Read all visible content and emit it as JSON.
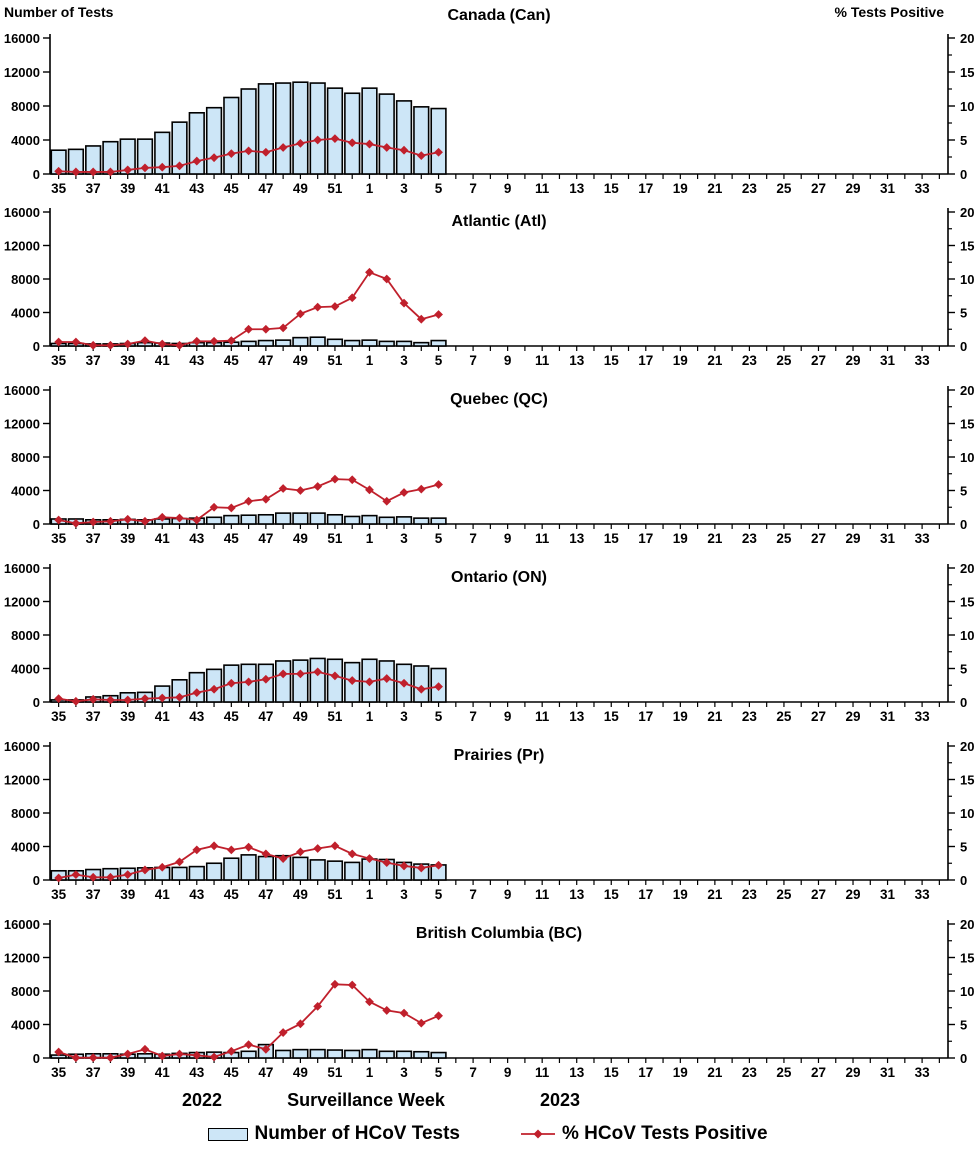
{
  "figure": {
    "left_axis_title": "Number of Tests",
    "right_axis_title": "% Tests Positive",
    "x_axis_title": "Surveillance Week",
    "year_left": "2022",
    "year_right": "2023"
  },
  "legend": {
    "bars_label": "Number of HCoV Tests",
    "line_label": "% HCoV Tests Positive"
  },
  "colors": {
    "bar_fill": "#CDE6F7",
    "bar_stroke": "#000000",
    "line": "#C0202C",
    "text": "#000000"
  },
  "chart_data": {
    "type": "bar+line",
    "description": "Six stacked panels sharing identical axes: bars = weekly number of HCoV tests (left axis), red diamond line = % HCoV tests positive (right axis).",
    "x_weeks": [
      35,
      36,
      37,
      38,
      39,
      40,
      41,
      42,
      43,
      44,
      45,
      46,
      47,
      48,
      49,
      50,
      51,
      52,
      1,
      2,
      3,
      4,
      5,
      6,
      7,
      8,
      9,
      10,
      11,
      12,
      13,
      14,
      15,
      16,
      17,
      18,
      19,
      20,
      21,
      22,
      23,
      24,
      25,
      26,
      27,
      28,
      29,
      30,
      31,
      32,
      33,
      34
    ],
    "x_tick_labels": [
      35,
      37,
      39,
      41,
      43,
      45,
      47,
      49,
      51,
      1,
      3,
      5,
      7,
      9,
      11,
      13,
      15,
      17,
      19,
      21,
      23,
      25,
      27,
      29,
      31,
      33
    ],
    "data_weeks": [
      35,
      36,
      37,
      38,
      39,
      40,
      41,
      42,
      43,
      44,
      45,
      46,
      47,
      48,
      49,
      50,
      51,
      52,
      1,
      2,
      3,
      4,
      5
    ],
    "y_left": {
      "ticks": [
        0,
        4000,
        8000,
        12000,
        16000
      ],
      "lim": [
        0,
        16000
      ]
    },
    "y_right": {
      "ticks": [
        0,
        5,
        10,
        15,
        20
      ],
      "lim": [
        0,
        20
      ]
    },
    "panels": [
      {
        "title": "Canada (Can)",
        "bars": [
          2800,
          2900,
          3300,
          3800,
          4100,
          4100,
          4900,
          6100,
          7200,
          7800,
          9000,
          10000,
          10600,
          10700,
          10800,
          10700,
          10100,
          9500,
          10100,
          9400,
          8600,
          7900,
          7700
        ],
        "pct_positive": [
          0.4,
          0.3,
          0.3,
          0.3,
          0.6,
          0.9,
          1.0,
          1.2,
          1.9,
          2.4,
          3.0,
          3.4,
          3.2,
          3.9,
          4.5,
          5.0,
          5.2,
          4.6,
          4.4,
          3.9,
          3.5,
          2.7,
          3.2
        ]
      },
      {
        "title": "Atlantic (Atl)",
        "bars": [
          300,
          300,
          250,
          250,
          300,
          400,
          350,
          300,
          400,
          400,
          450,
          550,
          650,
          700,
          1000,
          1050,
          800,
          650,
          700,
          550,
          550,
          400,
          650
        ],
        "pct_positive": [
          0.6,
          0.6,
          0.1,
          0.1,
          0.3,
          0.8,
          0.3,
          0.1,
          0.7,
          0.7,
          0.8,
          2.5,
          2.5,
          2.7,
          4.8,
          5.8,
          5.9,
          7.2,
          11.0,
          10.0,
          6.4,
          4.0,
          4.7
        ]
      },
      {
        "title": "Quebec (QC)",
        "bars": [
          600,
          600,
          500,
          500,
          550,
          500,
          600,
          650,
          700,
          800,
          1000,
          1050,
          1100,
          1300,
          1300,
          1300,
          1100,
          900,
          1000,
          800,
          850,
          700,
          700
        ],
        "pct_positive": [
          0.6,
          0.1,
          0.3,
          0.4,
          0.7,
          0.4,
          1.0,
          0.9,
          0.6,
          2.5,
          2.4,
          3.4,
          3.7,
          5.3,
          5.0,
          5.6,
          6.7,
          6.6,
          5.1,
          3.4,
          4.7,
          5.2,
          5.9
        ]
      },
      {
        "title": "Ontario (ON)",
        "bars": [
          250,
          250,
          600,
          750,
          1100,
          1150,
          1900,
          2650,
          3500,
          3900,
          4400,
          4500,
          4500,
          4900,
          5000,
          5200,
          5100,
          4700,
          5100,
          4900,
          4500,
          4300,
          4000
        ],
        "pct_positive": [
          0.5,
          0.1,
          0.4,
          0.3,
          0.3,
          0.5,
          0.6,
          0.7,
          1.4,
          1.9,
          2.8,
          3.0,
          3.4,
          4.2,
          4.2,
          4.5,
          3.9,
          3.2,
          3.0,
          3.5,
          2.8,
          1.9,
          2.3
        ]
      },
      {
        "title": "Prairies (Pr)",
        "bars": [
          1100,
          1100,
          1250,
          1350,
          1400,
          1450,
          1500,
          1500,
          1600,
          2000,
          2600,
          3000,
          2800,
          2900,
          2700,
          2400,
          2250,
          2100,
          2500,
          2450,
          2100,
          1900,
          1800
        ],
        "pct_positive": [
          0.3,
          0.8,
          0.4,
          0.4,
          0.8,
          1.5,
          1.9,
          2.7,
          4.5,
          5.1,
          4.5,
          4.9,
          3.9,
          3.2,
          4.2,
          4.7,
          5.1,
          3.9,
          3.2,
          2.6,
          2.1,
          1.8,
          2.2
        ]
      },
      {
        "title": "British Columbia (BC)",
        "bars": [
          350,
          450,
          500,
          500,
          450,
          500,
          450,
          550,
          650,
          700,
          650,
          800,
          1600,
          900,
          1000,
          1000,
          950,
          900,
          1000,
          800,
          800,
          750,
          650
        ],
        "pct_positive": [
          0.9,
          0.05,
          0.05,
          0.05,
          0.6,
          1.3,
          0.3,
          0.6,
          0.4,
          0.15,
          1.0,
          2.0,
          1.3,
          3.8,
          5.1,
          7.7,
          11.0,
          10.9,
          8.4,
          7.1,
          6.7,
          5.2,
          6.3
        ]
      }
    ]
  }
}
